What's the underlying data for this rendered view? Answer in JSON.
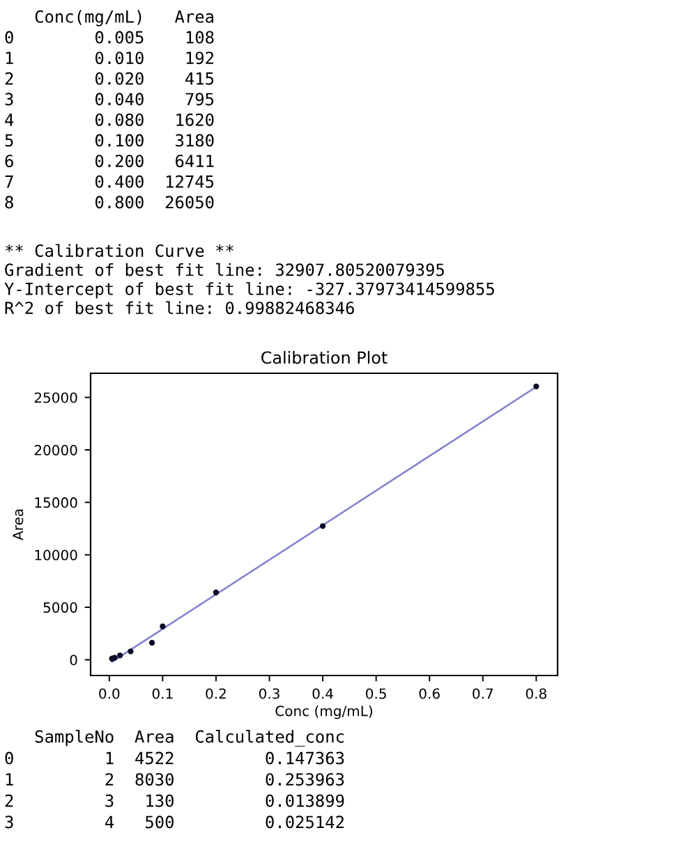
{
  "chart_data": {
    "type": "scatter",
    "title": "Calibration Plot",
    "xlabel": "Conc (mg/mL)",
    "ylabel": "Area",
    "series": [
      {
        "marker": "circle",
        "color": "#0a0a28",
        "x": [
          0.005,
          0.01,
          0.02,
          0.04,
          0.08,
          0.1,
          0.2,
          0.4,
          0.8
        ],
        "values": [
          108,
          192,
          415,
          795,
          1620,
          3180,
          6411,
          12745,
          26050
        ]
      },
      {
        "type": "line",
        "marker": "none",
        "line_style": "solid",
        "color": "#8080d0",
        "x": [
          0.005,
          0.8
        ],
        "values": [
          -200,
          26000
        ]
      }
    ],
    "xlim": [
      -0.035,
      0.84
    ],
    "xticks": [
      {
        "value": 0,
        "label": "0.0"
      },
      0.1,
      0.2,
      0.3,
      0.4,
      0.5,
      0.6,
      0.7,
      0.8
    ],
    "ylim": [
      -1500,
      27300
    ],
    "yticks": [
      0,
      5000,
      10000,
      15000,
      20000,
      25000
    ],
    "annotations": [
      "   Conc(mg/mL)   Area\n0        0.005    108\n1        0.010    192\n2        0.020    415\n3        0.040    795\n4        0.080   1620\n5        0.100   3180\n6        0.200   6411\n7        0.400  12745\n8        0.800  26050",
      "** Calibration Curve **\nGradient of best fit line: 32907.80520079395\nY-Intercept of best fit line: -327.37973414599855\nR^2 of best fit line: 0.99882468346",
      "   SampleNo  Area  Calculated_conc\n0         1  4522         0.147363\n1         2  8030         0.253963\n2         3   130         0.013899\n3         4   500         0.025142"
    ]
  }
}
